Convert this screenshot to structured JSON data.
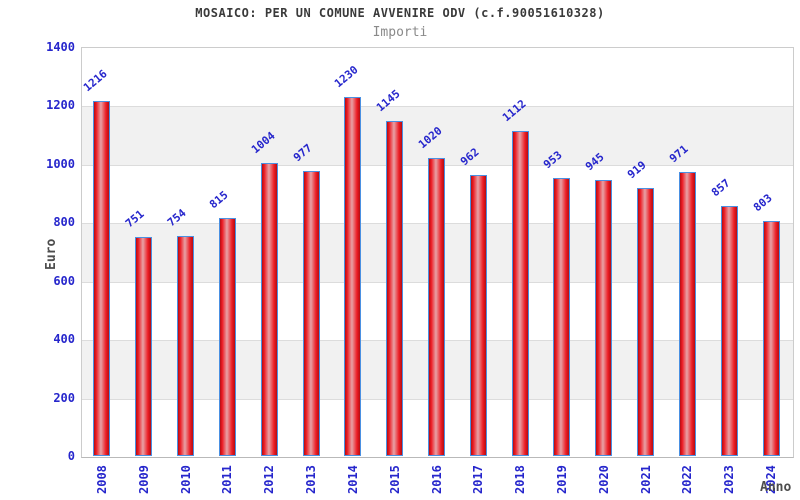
{
  "chart_data": {
    "type": "bar",
    "title": "MOSAICO: PER UN COMUNE AVVENIRE ODV (c.f.90051610328)",
    "subtitle": "Importi",
    "xlabel": "Anno",
    "ylabel": "Euro",
    "categories": [
      "2008",
      "2009",
      "2010",
      "2011",
      "2012",
      "2013",
      "2014",
      "2015",
      "2016",
      "2017",
      "2018",
      "2019",
      "2020",
      "2021",
      "2022",
      "2023",
      "2024"
    ],
    "values": [
      1216,
      751,
      754,
      815,
      1004,
      977,
      1230,
      1145,
      1020,
      962,
      1112,
      953,
      945,
      919,
      971,
      857,
      803
    ],
    "ylim": [
      0,
      1400
    ],
    "yticks": [
      0,
      200,
      400,
      600,
      800,
      1000,
      1200,
      1400
    ],
    "grid": true,
    "legend_position": "none",
    "band_shading": "alternating horizontal bands every 200 units (gray on 200-400, 600-800, 1000-1200)",
    "value_labels_rotation_deg": -40,
    "xtick_rotation_deg": -90
  },
  "colors": {
    "blue_text": "#2626cc",
    "title_text": "#3a3a3a",
    "subtitle_text": "#8a8a8a",
    "axis_label_text": "#4d4d4d",
    "bar_border": "#4a90e2",
    "bar_red": "#ec1c24",
    "bar_red_dark": "#b50d12",
    "bar_red_light": "#e8a2a6",
    "band_fill": "#f1f1f1",
    "gridline": "#dcdcdc",
    "plot_border": "#cccccc"
  }
}
